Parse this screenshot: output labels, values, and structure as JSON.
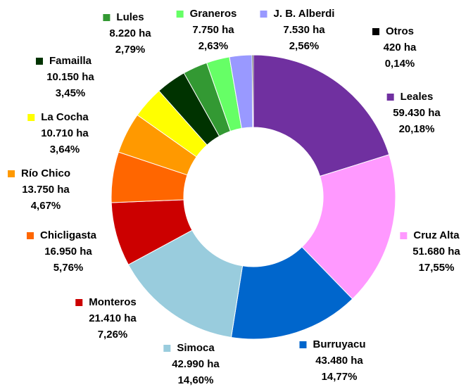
{
  "chart_data": {
    "type": "donut",
    "categories": [
      "Leales",
      "Cruz Alta",
      "Burruyacu",
      "Simoca",
      "Monteros",
      "Chicligasta",
      "Río Chico",
      "La Cocha",
      "Famailla",
      "Lules",
      "Graneros",
      "J. B. Alberdi",
      "Otros"
    ],
    "values": [
      59430,
      51680,
      43480,
      42990,
      21410,
      16950,
      13750,
      10710,
      10150,
      8220,
      7750,
      7530,
      420
    ],
    "value_labels": [
      "59.430 ha",
      "51.680 ha",
      "43.480 ha",
      "42.990 ha",
      "21.410 ha",
      "16.950 ha",
      "13.750 ha",
      "10.710 ha",
      "10.150 ha",
      "8.220 ha",
      "7.750 ha",
      "7.530 ha",
      "420 ha"
    ],
    "percents": [
      20.18,
      17.55,
      14.77,
      14.6,
      7.26,
      5.76,
      4.67,
      3.64,
      3.45,
      2.79,
      2.63,
      2.56,
      0.14
    ],
    "percent_labels": [
      "20,18%",
      "17,55%",
      "14,77%",
      "14,60%",
      "7,26%",
      "5,76%",
      "4,67%",
      "3,64%",
      "3,45%",
      "2,79%",
      "2,63%",
      "2,56%",
      "0,14%"
    ],
    "colors": [
      "#7030a0",
      "#ff99ff",
      "#0066cc",
      "#99ccdd",
      "#cc0000",
      "#ff6600",
      "#ff9900",
      "#ffff00",
      "#003300",
      "#339933",
      "#66ff66",
      "#9999ff",
      "#000000"
    ]
  }
}
